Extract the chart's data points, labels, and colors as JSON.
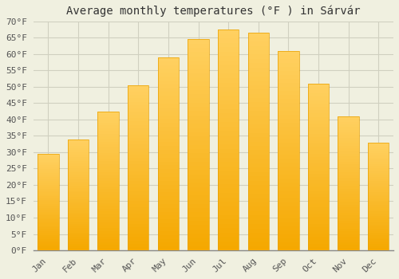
{
  "title": "Average monthly temperatures (°F ) in Sárvár",
  "months": [
    "Jan",
    "Feb",
    "Mar",
    "Apr",
    "May",
    "Jun",
    "Jul",
    "Aug",
    "Sep",
    "Oct",
    "Nov",
    "Dec"
  ],
  "values": [
    29.5,
    34.0,
    42.5,
    50.5,
    59.0,
    64.5,
    67.5,
    66.5,
    61.0,
    51.0,
    41.0,
    33.0
  ],
  "bar_color_bottom": "#F5A800",
  "bar_color_top": "#FFD060",
  "bar_edge_color": "#E8A000",
  "background_color": "#f0f0e0",
  "grid_color": "#d0d0c0",
  "ylim": [
    0,
    70
  ],
  "ytick_step": 5,
  "title_fontsize": 10,
  "tick_fontsize": 8,
  "font_family": "monospace"
}
